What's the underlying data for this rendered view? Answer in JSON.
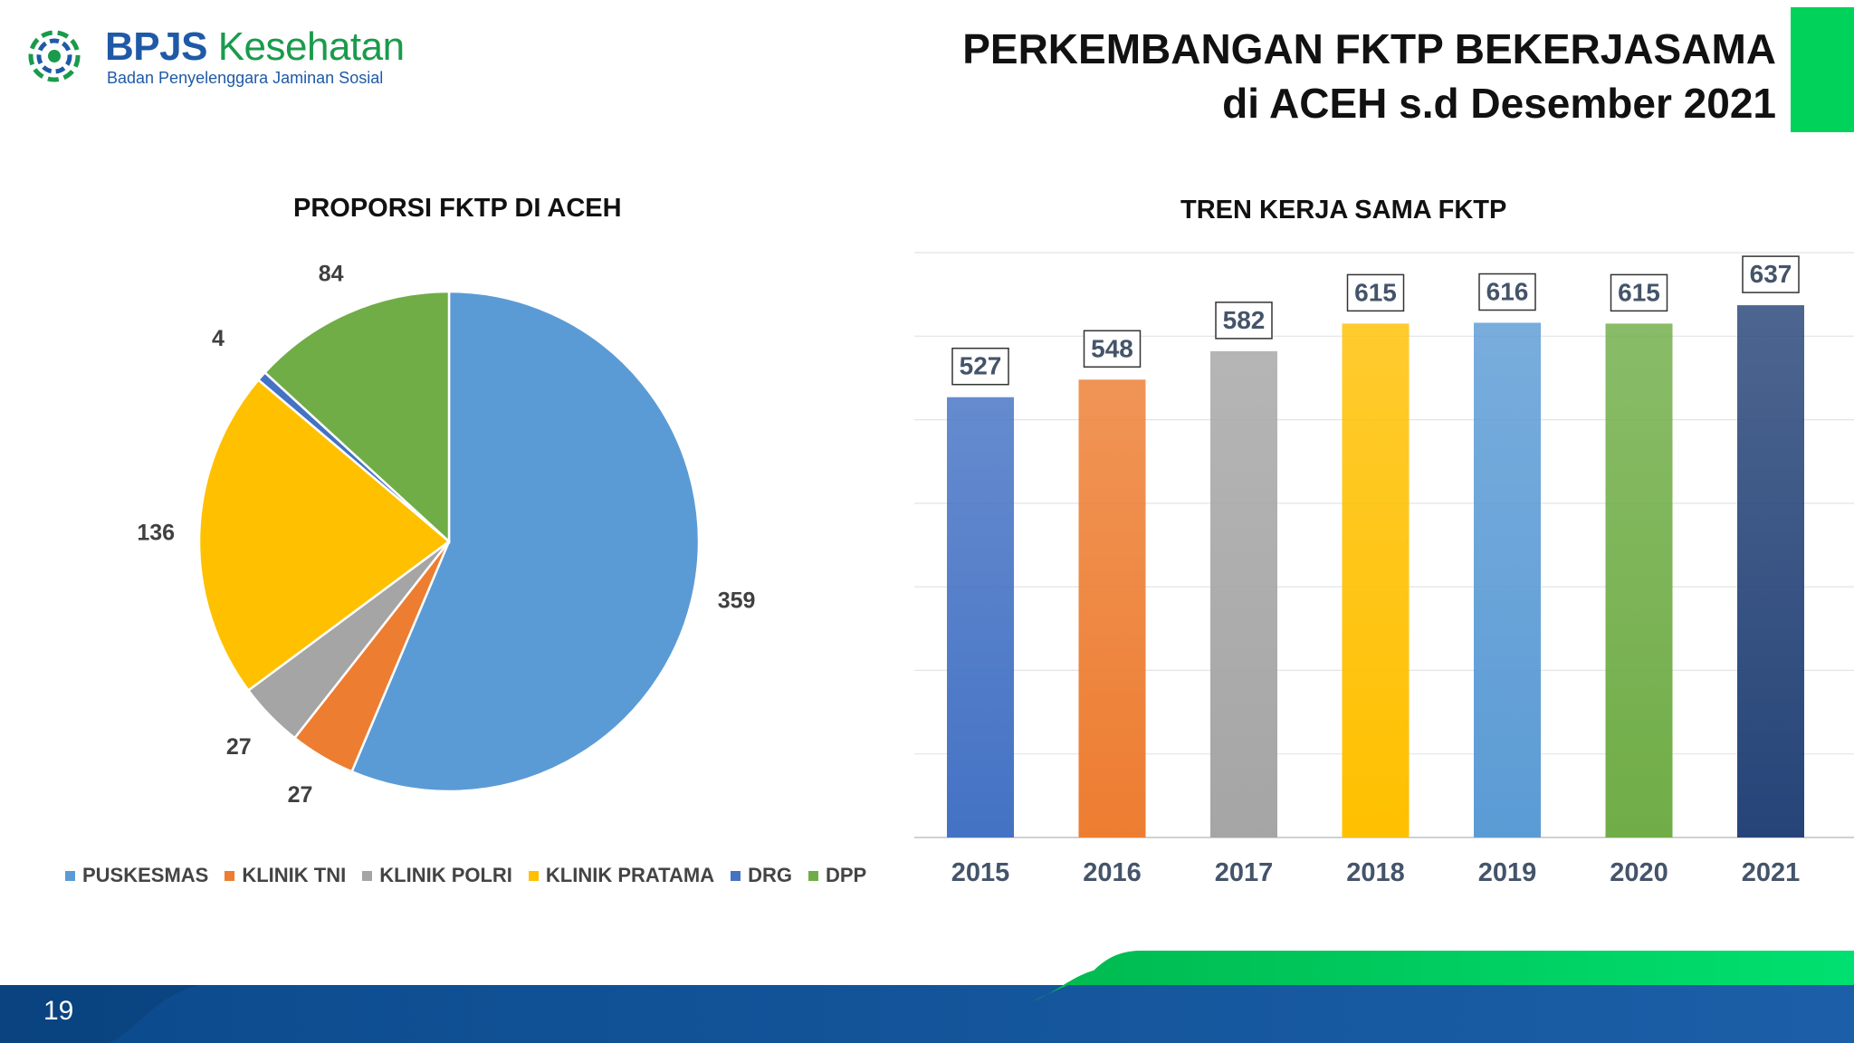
{
  "header": {
    "brand_part1": "BPJS",
    "brand_part2": "Kesehatan",
    "brand_sub": "Badan Penyelenggara Jaminan Sosial",
    "title_line1": "PERKEMBANGAN FKTP BEKERJASAMA",
    "title_line2": "di ACEH s.d Desember 2021"
  },
  "page_number": "19",
  "colors": {
    "accent_green": "#00d25a",
    "footer_blue": "#0d4f93"
  },
  "chart_data": [
    {
      "type": "pie",
      "title": "PROPORSI FKTP DI ACEH",
      "categories": [
        "PUSKESMAS",
        "KLINIK TNI",
        "KLINIK POLRI",
        "KLINIK PRATAMA",
        "DRG",
        "DPP"
      ],
      "values": [
        359,
        27,
        27,
        136,
        4,
        84
      ],
      "value_labels": [
        "359",
        "27",
        "27",
        "136",
        "4",
        "84"
      ],
      "colors": [
        "#5b9bd5",
        "#ed7d31",
        "#a5a5a5",
        "#ffc000",
        "#4472c4",
        "#70ad47"
      ],
      "legend_position": "bottom"
    },
    {
      "type": "bar",
      "title": "TREN KERJA SAMA FKTP",
      "categories": [
        "2015",
        "2016",
        "2017",
        "2018",
        "2019",
        "2020",
        "2021"
      ],
      "values": [
        527,
        548,
        582,
        615,
        616,
        615,
        637
      ],
      "value_labels": [
        "527",
        "548",
        "582",
        "615",
        "616",
        "615",
        "637"
      ],
      "colors": [
        "#4472c4",
        "#ed7d31",
        "#a5a5a5",
        "#ffc000",
        "#5b9bd5",
        "#70ad47",
        "#264478"
      ],
      "ylim": [
        0,
        700
      ],
      "grid": true,
      "legend": false
    }
  ]
}
